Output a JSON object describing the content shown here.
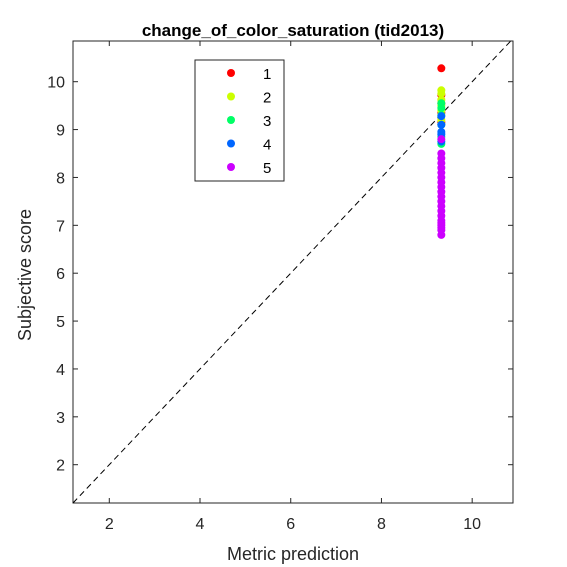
{
  "chart_data": {
    "type": "scatter",
    "title": "change_of_color_saturation (tid2013)",
    "xlabel": "Metric prediction",
    "ylabel": "Subjective score",
    "xlim": [
      1.2,
      10.9
    ],
    "ylim": [
      1.2,
      10.85
    ],
    "xticks": [
      2,
      4,
      6,
      8,
      10
    ],
    "yticks": [
      2,
      3,
      4,
      5,
      6,
      7,
      8,
      9,
      10
    ],
    "grid": false,
    "reference_line": "y = x (dashed)",
    "legend_position": "top-left",
    "series": [
      {
        "name": "1",
        "color": "#ff0000",
        "x": [
          9.32,
          9.32,
          9.32,
          9.32,
          9.32
        ],
        "y": [
          10.28,
          9.72,
          9.55,
          9.35,
          9.15
        ]
      },
      {
        "name": "2",
        "color": "#ccff00",
        "x": [
          9.32,
          9.32,
          9.32,
          9.32,
          9.32,
          9.32
        ],
        "y": [
          9.82,
          9.75,
          9.62,
          9.5,
          9.4,
          9.2
        ]
      },
      {
        "name": "3",
        "color": "#00ff66",
        "x": [
          9.32,
          9.32,
          9.32,
          9.32,
          9.32,
          9.32
        ],
        "y": [
          9.55,
          9.45,
          9.3,
          9.1,
          8.85,
          8.7
        ]
      },
      {
        "name": "4",
        "color": "#0066ff",
        "x": [
          9.32,
          9.32,
          9.32,
          9.32,
          9.32
        ],
        "y": [
          9.28,
          9.1,
          8.95,
          8.9,
          8.75
        ]
      },
      {
        "name": "5",
        "color": "#cc00ff",
        "x": [
          9.32,
          9.32,
          9.32,
          9.32,
          9.32,
          9.32,
          9.32,
          9.32,
          9.32,
          9.32,
          9.32,
          9.32,
          9.32,
          9.32,
          9.32,
          9.32,
          9.32,
          9.32,
          9.32,
          9.32,
          9.32
        ],
        "y": [
          8.8,
          8.5,
          8.4,
          8.3,
          8.2,
          8.1,
          8.0,
          7.9,
          7.8,
          7.7,
          7.6,
          7.5,
          7.4,
          7.3,
          7.2,
          7.1,
          7.05,
          7.0,
          6.95,
          6.9,
          6.8
        ]
      }
    ]
  }
}
